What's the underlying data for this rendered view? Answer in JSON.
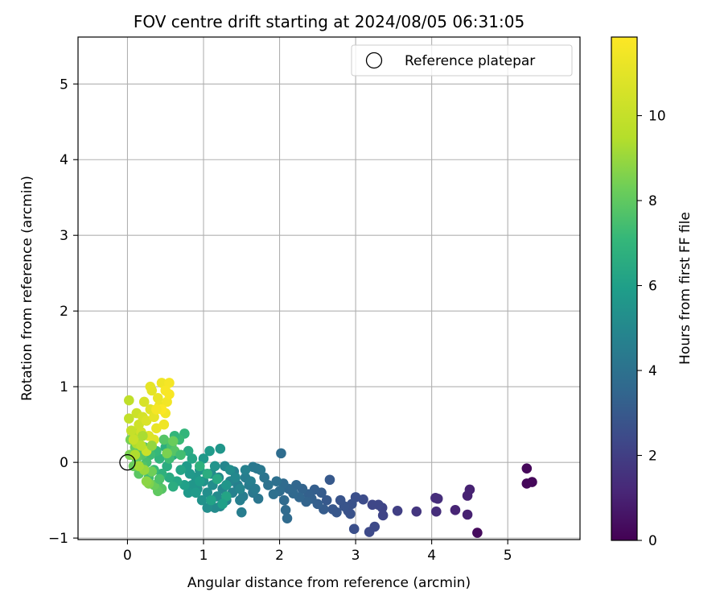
{
  "chart_data": {
    "type": "scatter",
    "title": "FOV centre drift starting at 2024/08/05 06:31:05",
    "xlabel": "Angular distance from reference (arcmin)",
    "ylabel": "Rotation from reference (arcmin)",
    "xlim": [
      -0.65,
      5.95
    ],
    "ylim": [
      -1.02,
      5.62
    ],
    "xticks": [
      0,
      1,
      2,
      3,
      4,
      5
    ],
    "yticks": [
      -1,
      0,
      1,
      2,
      3,
      4,
      5
    ],
    "xtick_labels": [
      "0",
      "1",
      "2",
      "3",
      "4",
      "5"
    ],
    "ytick_labels": [
      "−1",
      "0",
      "1",
      "2",
      "3",
      "4",
      "5"
    ],
    "grid": true,
    "legend": {
      "position": "top-right",
      "entries": [
        "Reference platepar"
      ]
    },
    "reference_point": {
      "x": 0,
      "y": 0
    },
    "colorbar": {
      "label": "Hours from first FF file",
      "range": [
        0,
        11.85
      ],
      "ticks": [
        0,
        2,
        4,
        6,
        8,
        10
      ],
      "tick_labels": [
        "0",
        "2",
        "4",
        "6",
        "8",
        "10"
      ],
      "colormap": "viridis"
    },
    "series": [
      {
        "points": [
          {
            "x": 5.25,
            "y": -0.08,
            "c": 0.2
          },
          {
            "x": 5.25,
            "y": -0.28,
            "c": 0.2
          },
          {
            "x": 5.32,
            "y": -0.26,
            "c": 0.2
          },
          {
            "x": 4.6,
            "y": -0.93,
            "c": 0.3
          },
          {
            "x": 4.5,
            "y": -0.36,
            "c": 1.0
          },
          {
            "x": 4.47,
            "y": -0.44,
            "c": 1.0
          },
          {
            "x": 4.47,
            "y": -0.69,
            "c": 1.0
          },
          {
            "x": 4.31,
            "y": -0.63,
            "c": 1.1
          },
          {
            "x": 4.05,
            "y": -0.47,
            "c": 1.4
          },
          {
            "x": 4.08,
            "y": -0.48,
            "c": 1.4
          },
          {
            "x": 4.06,
            "y": -0.65,
            "c": 1.4
          },
          {
            "x": 3.8,
            "y": -0.65,
            "c": 1.7
          },
          {
            "x": 3.55,
            "y": -0.64,
            "c": 2.0
          },
          {
            "x": 3.35,
            "y": -0.6,
            "c": 2.2
          },
          {
            "x": 3.36,
            "y": -0.7,
            "c": 2.2
          },
          {
            "x": 3.3,
            "y": -0.56,
            "c": 2.3
          },
          {
            "x": 3.22,
            "y": -0.56,
            "c": 2.3
          },
          {
            "x": 3.25,
            "y": -0.85,
            "c": 2.4
          },
          {
            "x": 3.18,
            "y": -0.92,
            "c": 2.4
          },
          {
            "x": 3.1,
            "y": -0.49,
            "c": 2.5
          },
          {
            "x": 2.98,
            "y": -0.88,
            "c": 2.6
          },
          {
            "x": 3.0,
            "y": -0.46,
            "c": 2.6
          },
          {
            "x": 2.95,
            "y": -0.55,
            "c": 2.7
          },
          {
            "x": 2.9,
            "y": -0.64,
            "c": 2.7
          },
          {
            "x": 2.93,
            "y": -0.68,
            "c": 2.7
          },
          {
            "x": 2.85,
            "y": -0.58,
            "c": 2.8
          },
          {
            "x": 2.8,
            "y": -0.5,
            "c": 2.8
          },
          {
            "x": 2.75,
            "y": -0.66,
            "c": 2.9
          },
          {
            "x": 2.7,
            "y": -0.62,
            "c": 2.9
          },
          {
            "x": 2.66,
            "y": -0.23,
            "c": 3.0
          },
          {
            "x": 2.62,
            "y": -0.5,
            "c": 3.0
          },
          {
            "x": 2.58,
            "y": -0.62,
            "c": 3.1
          },
          {
            "x": 2.55,
            "y": -0.4,
            "c": 3.1
          },
          {
            "x": 2.5,
            "y": -0.55,
            "c": 3.2
          },
          {
            "x": 2.46,
            "y": -0.36,
            "c": 3.2
          },
          {
            "x": 2.42,
            "y": -0.48,
            "c": 3.3
          },
          {
            "x": 2.38,
            "y": -0.42,
            "c": 3.3
          },
          {
            "x": 2.35,
            "y": -0.52,
            "c": 3.4
          },
          {
            "x": 2.3,
            "y": -0.35,
            "c": 3.4
          },
          {
            "x": 2.26,
            "y": -0.46,
            "c": 3.5
          },
          {
            "x": 2.22,
            "y": -0.3,
            "c": 3.5
          },
          {
            "x": 2.18,
            "y": -0.41,
            "c": 3.6
          },
          {
            "x": 2.12,
            "y": -0.35,
            "c": 3.6
          },
          {
            "x": 2.1,
            "y": -0.74,
            "c": 3.7
          },
          {
            "x": 2.08,
            "y": -0.63,
            "c": 3.7
          },
          {
            "x": 2.06,
            "y": -0.5,
            "c": 3.7
          },
          {
            "x": 2.05,
            "y": -0.28,
            "c": 3.7
          },
          {
            "x": 2.02,
            "y": 0.12,
            "c": 3.8
          },
          {
            "x": 2.0,
            "y": -0.38,
            "c": 3.8
          },
          {
            "x": 1.96,
            "y": -0.25,
            "c": 3.9
          },
          {
            "x": 1.92,
            "y": -0.42,
            "c": 3.9
          },
          {
            "x": 1.85,
            "y": -0.3,
            "c": 4.0
          },
          {
            "x": 1.8,
            "y": -0.2,
            "c": 4.1
          },
          {
            "x": 1.72,
            "y": -0.48,
            "c": 4.2
          },
          {
            "x": 1.7,
            "y": -0.08,
            "c": 4.2
          },
          {
            "x": 1.65,
            "y": -0.06,
            "c": 4.3
          },
          {
            "x": 1.65,
            "y": -0.4,
            "c": 4.3
          },
          {
            "x": 1.6,
            "y": -0.3,
            "c": 4.4
          },
          {
            "x": 1.55,
            "y": -0.2,
            "c": 4.5
          },
          {
            "x": 1.52,
            "y": -0.45,
            "c": 4.5
          },
          {
            "x": 1.5,
            "y": -0.66,
            "c": 4.5
          },
          {
            "x": 1.48,
            "y": -0.5,
            "c": 4.6
          },
          {
            "x": 1.45,
            "y": -0.3,
            "c": 4.6
          },
          {
            "x": 1.4,
            "y": -0.12,
            "c": 4.7
          },
          {
            "x": 1.38,
            "y": -0.4,
            "c": 4.7
          },
          {
            "x": 1.35,
            "y": -0.25,
            "c": 4.8
          },
          {
            "x": 1.3,
            "y": -0.5,
            "c": 4.8
          },
          {
            "x": 1.28,
            "y": -0.05,
            "c": 4.9
          },
          {
            "x": 1.25,
            "y": -0.35,
            "c": 4.9
          },
          {
            "x": 1.22,
            "y": -0.58,
            "c": 5.0
          },
          {
            "x": 1.2,
            "y": -0.2,
            "c": 5.0
          },
          {
            "x": 1.18,
            "y": -0.45,
            "c": 5.1
          },
          {
            "x": 1.15,
            "y": -0.6,
            "c": 5.1
          },
          {
            "x": 1.12,
            "y": -0.3,
            "c": 5.2
          },
          {
            "x": 1.1,
            "y": -0.15,
            "c": 5.2
          },
          {
            "x": 1.05,
            "y": -0.6,
            "c": 5.3
          },
          {
            "x": 1.05,
            "y": -0.4,
            "c": 5.3
          },
          {
            "x": 1.0,
            "y": -0.25,
            "c": 5.4
          },
          {
            "x": 0.98,
            "y": -0.5,
            "c": 5.4
          },
          {
            "x": 0.95,
            "y": -0.1,
            "c": 5.5
          },
          {
            "x": 0.92,
            "y": -0.35,
            "c": 5.5
          },
          {
            "x": 0.9,
            "y": -0.2,
            "c": 5.6
          },
          {
            "x": 0.85,
            "y": -0.3,
            "c": 5.6
          },
          {
            "x": 0.82,
            "y": -0.15,
            "c": 5.7
          },
          {
            "x": 0.8,
            "y": -0.4,
            "c": 5.7
          },
          {
            "x": 0.78,
            "y": -0.05,
            "c": 5.8
          },
          {
            "x": 1.22,
            "y": 0.18,
            "c": 5.6
          },
          {
            "x": 1.08,
            "y": 0.15,
            "c": 5.8
          },
          {
            "x": 1.3,
            "y": -0.45,
            "c": 6.2
          },
          {
            "x": 1.25,
            "y": -0.55,
            "c": 6.0
          },
          {
            "x": 1.1,
            "y": -0.5,
            "c": 6.1
          },
          {
            "x": 0.75,
            "y": -0.3,
            "c": 6.0
          },
          {
            "x": 0.7,
            "y": -0.1,
            "c": 6.2
          },
          {
            "x": 0.65,
            "y": -0.25,
            "c": 6.3
          },
          {
            "x": 0.6,
            "y": 0.1,
            "c": 6.4
          },
          {
            "x": 0.55,
            "y": -0.2,
            "c": 6.5
          },
          {
            "x": 0.52,
            "y": -0.05,
            "c": 6.6
          },
          {
            "x": 0.5,
            "y": 0.2,
            "c": 6.7
          },
          {
            "x": 0.45,
            "y": -0.15,
            "c": 6.8
          },
          {
            "x": 0.42,
            "y": 0.05,
            "c": 6.9
          },
          {
            "x": 0.4,
            "y": -0.3,
            "c": 7.0
          },
          {
            "x": 0.38,
            "y": 0.15,
            "c": 7.1
          },
          {
            "x": 0.35,
            "y": -0.1,
            "c": 7.2
          },
          {
            "x": 0.3,
            "y": 0.1,
            "c": 7.3
          },
          {
            "x": 0.28,
            "y": -0.2,
            "c": 7.4
          },
          {
            "x": 0.25,
            "y": 0.0,
            "c": 7.5
          },
          {
            "x": 0.22,
            "y": 0.2,
            "c": 7.6
          },
          {
            "x": 0.2,
            "y": -0.05,
            "c": 7.7
          },
          {
            "x": 0.18,
            "y": 0.1,
            "c": 7.8
          },
          {
            "x": 0.15,
            "y": -0.15,
            "c": 7.9
          },
          {
            "x": 0.12,
            "y": 0.05,
            "c": 8.0
          },
          {
            "x": 0.1,
            "y": 0.2,
            "c": 8.1
          },
          {
            "x": 0.08,
            "y": -0.05,
            "c": 8.2
          },
          {
            "x": 0.05,
            "y": 0.1,
            "c": 8.3
          },
          {
            "x": 0.04,
            "y": 0.3,
            "c": 8.4
          },
          {
            "x": 0.03,
            "y": 0.1,
            "c": 8.5
          },
          {
            "x": 0.8,
            "y": 0.15,
            "c": 6.5
          },
          {
            "x": 0.75,
            "y": 0.38,
            "c": 7.0
          },
          {
            "x": 0.68,
            "y": 0.3,
            "c": 7.2
          },
          {
            "x": 0.62,
            "y": 0.35,
            "c": 7.0
          },
          {
            "x": 0.58,
            "y": 0.22,
            "c": 7.5
          },
          {
            "x": 0.55,
            "y": 0.05,
            "c": 7.3
          },
          {
            "x": 0.48,
            "y": 0.3,
            "c": 7.8
          },
          {
            "x": 0.45,
            "y": -0.35,
            "c": 7.8
          },
          {
            "x": 0.4,
            "y": -0.38,
            "c": 8.0
          },
          {
            "x": 0.35,
            "y": -0.3,
            "c": 8.2
          },
          {
            "x": 0.32,
            "y": -0.12,
            "c": 8.3
          },
          {
            "x": 0.28,
            "y": -0.28,
            "c": 8.6
          },
          {
            "x": 0.25,
            "y": -0.25,
            "c": 8.8
          },
          {
            "x": 0.22,
            "y": -0.1,
            "c": 9.0
          },
          {
            "x": 0.15,
            "y": -0.05,
            "c": 9.2
          },
          {
            "x": 0.12,
            "y": 0.25,
            "c": 9.4
          },
          {
            "x": 0.1,
            "y": 0.4,
            "c": 9.6
          },
          {
            "x": 0.02,
            "y": 0.82,
            "c": 9.8
          },
          {
            "x": 0.02,
            "y": 0.58,
            "c": 9.9
          },
          {
            "x": 0.05,
            "y": 0.42,
            "c": 10.0
          },
          {
            "x": 0.08,
            "y": 0.3,
            "c": 10.1
          },
          {
            "x": 0.12,
            "y": 0.65,
            "c": 10.2
          },
          {
            "x": 0.15,
            "y": 0.5,
            "c": 10.3
          },
          {
            "x": 0.18,
            "y": 0.4,
            "c": 10.4
          },
          {
            "x": 0.2,
            "y": 0.6,
            "c": 10.5
          },
          {
            "x": 0.22,
            "y": 0.8,
            "c": 10.6
          },
          {
            "x": 0.25,
            "y": 0.55,
            "c": 10.7
          },
          {
            "x": 0.28,
            "y": 0.35,
            "c": 10.8
          },
          {
            "x": 0.3,
            "y": 0.7,
            "c": 10.9
          },
          {
            "x": 0.32,
            "y": 0.95,
            "c": 11.0
          },
          {
            "x": 0.3,
            "y": 1.0,
            "c": 11.1
          },
          {
            "x": 0.35,
            "y": 0.6,
            "c": 11.1
          },
          {
            "x": 0.38,
            "y": 0.45,
            "c": 11.2
          },
          {
            "x": 0.4,
            "y": 0.85,
            "c": 11.2
          },
          {
            "x": 0.42,
            "y": 0.75,
            "c": 11.3
          },
          {
            "x": 0.45,
            "y": 1.05,
            "c": 11.4
          },
          {
            "x": 0.48,
            "y": 0.5,
            "c": 11.4
          },
          {
            "x": 0.5,
            "y": 0.65,
            "c": 11.5
          },
          {
            "x": 0.52,
            "y": 0.8,
            "c": 11.5
          },
          {
            "x": 0.55,
            "y": 1.05,
            "c": 11.6
          },
          {
            "x": 0.55,
            "y": 0.9,
            "c": 11.7
          },
          {
            "x": 0.5,
            "y": 0.95,
            "c": 11.7
          },
          {
            "x": 0.45,
            "y": 0.7,
            "c": 11.8
          },
          {
            "x": 0.38,
            "y": 0.7,
            "c": 11.6
          },
          {
            "x": 0.35,
            "y": 0.3,
            "c": 10.8
          },
          {
            "x": 0.25,
            "y": 0.15,
            "c": 10.2
          },
          {
            "x": 0.18,
            "y": 0.22,
            "c": 9.7
          },
          {
            "x": 0.1,
            "y": 0.1,
            "c": 9.4
          },
          {
            "x": 0.62,
            "y": 0.15,
            "c": 7.8
          },
          {
            "x": 0.7,
            "y": 0.1,
            "c": 7.4
          },
          {
            "x": 0.42,
            "y": -0.22,
            "c": 7.6
          },
          {
            "x": 0.6,
            "y": -0.32,
            "c": 6.6
          },
          {
            "x": 0.85,
            "y": 0.05,
            "c": 6.3
          },
          {
            "x": 0.9,
            "y": -0.4,
            "c": 5.8
          },
          {
            "x": 0.95,
            "y": -0.25,
            "c": 5.9
          },
          {
            "x": 1.0,
            "y": 0.05,
            "c": 5.7
          },
          {
            "x": 1.15,
            "y": -0.05,
            "c": 5.5
          },
          {
            "x": 1.35,
            "y": -0.1,
            "c": 5.2
          },
          {
            "x": 1.42,
            "y": -0.2,
            "c": 5.0
          },
          {
            "x": 1.48,
            "y": -0.35,
            "c": 4.9
          },
          {
            "x": 1.55,
            "y": -0.1,
            "c": 4.7
          },
          {
            "x": 1.62,
            "y": -0.25,
            "c": 4.6
          },
          {
            "x": 1.68,
            "y": -0.35,
            "c": 4.4
          },
          {
            "x": 1.75,
            "y": -0.1,
            "c": 4.3
          },
          {
            "x": 1.3,
            "y": -0.3,
            "c": 5.6
          },
          {
            "x": 1.18,
            "y": -0.22,
            "c": 6.4
          },
          {
            "x": 1.05,
            "y": -0.15,
            "c": 6.6
          },
          {
            "x": 0.95,
            "y": -0.05,
            "c": 6.8
          },
          {
            "x": 0.6,
            "y": 0.28,
            "c": 8.2
          },
          {
            "x": 0.52,
            "y": 0.12,
            "c": 8.5
          },
          {
            "x": 0.32,
            "y": 0.22,
            "c": 8.9
          },
          {
            "x": 0.2,
            "y": 0.35,
            "c": 9.3
          }
        ]
      }
    ]
  }
}
